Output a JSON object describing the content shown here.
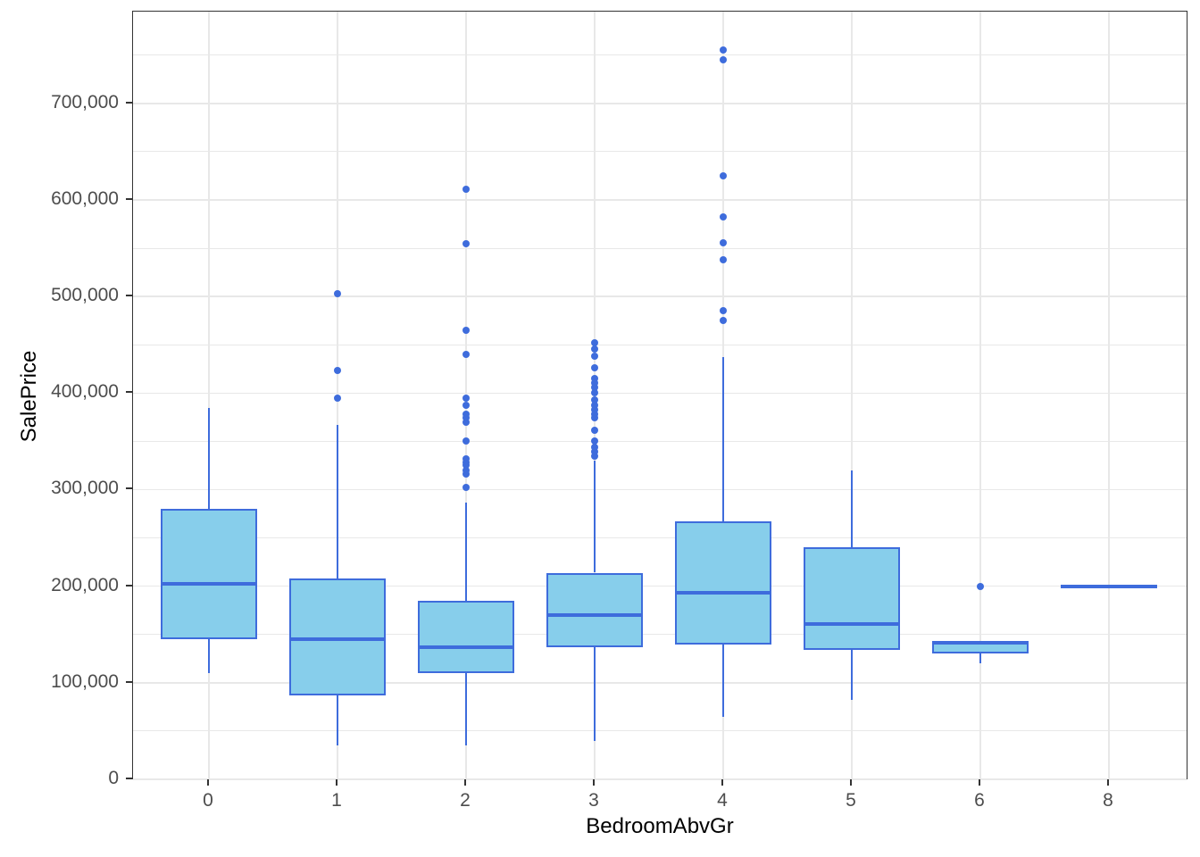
{
  "chart_data": {
    "type": "boxplot",
    "title": "",
    "xlabel": "BedroomAbvGr",
    "ylabel": "SalePrice",
    "ylim": [
      0,
      795000
    ],
    "grid": true,
    "legend": false,
    "y_major_ticks": {
      "values": [
        0,
        100000,
        200000,
        300000,
        400000,
        500000,
        600000,
        700000
      ],
      "labels": [
        "0",
        "100,000",
        "200,000",
        "300,000",
        "400,000",
        "500,000",
        "600,000",
        "700,000"
      ]
    },
    "y_minor_ticks": [
      50000,
      150000,
      250000,
      350000,
      450000,
      550000,
      650000,
      750000
    ],
    "categories": [
      "0",
      "1",
      "2",
      "3",
      "4",
      "5",
      "6",
      "8"
    ],
    "boxes": [
      {
        "category": "0",
        "whisker_low": 110000,
        "q1": 145000,
        "median": 202000,
        "q3": 280000,
        "whisker_high": 385000,
        "outliers": []
      },
      {
        "category": "1",
        "whisker_low": 35000,
        "q1": 87000,
        "median": 145000,
        "q3": 208000,
        "whisker_high": 367000,
        "outliers": [
          395000,
          423000,
          503000
        ]
      },
      {
        "category": "2",
        "whisker_low": 35000,
        "q1": 110000,
        "median": 137000,
        "q3": 185000,
        "whisker_high": 287000,
        "outliers": [
          302000,
          316000,
          320000,
          325000,
          328000,
          332000,
          350000,
          370000,
          374000,
          378000,
          387000,
          395000,
          440000,
          465000,
          555000,
          611000
        ]
      },
      {
        "category": "3",
        "whisker_low": 40000,
        "q1": 137000,
        "median": 170000,
        "q3": 214000,
        "whisker_high": 330000,
        "outliers": [
          335000,
          339000,
          344000,
          350000,
          361000,
          374000,
          378000,
          383000,
          387000,
          393000,
          400000,
          406000,
          410000,
          415000,
          426000,
          438000,
          446000,
          452000
        ]
      },
      {
        "category": "4",
        "whisker_low": 65000,
        "q1": 140000,
        "median": 193000,
        "q3": 267000,
        "whisker_high": 437000,
        "outliers": [
          475000,
          485000,
          538000,
          556000,
          582000,
          625000,
          745000,
          755000
        ]
      },
      {
        "category": "5",
        "whisker_low": 82000,
        "q1": 134000,
        "median": 161000,
        "q3": 240000,
        "whisker_high": 320000,
        "outliers": []
      },
      {
        "category": "6",
        "whisker_low": 120000,
        "q1": 130000,
        "median": 141000,
        "q3": 143000,
        "whisker_high": 143000,
        "outliers": [
          200000
        ]
      },
      {
        "category": "8",
        "whisker_low": 200000,
        "q1": 200000,
        "median": 200000,
        "q3": 200000,
        "whisker_high": 200000,
        "outliers": []
      }
    ],
    "colors": {
      "box_fill": "#87CEEB",
      "box_stroke": "#3E6CDC",
      "panel_border": "#333333",
      "gridline": "#E8E8E8",
      "tick_label": "#4D4D4D",
      "axis_title": "#000000",
      "background": "#FFFFFF"
    }
  }
}
